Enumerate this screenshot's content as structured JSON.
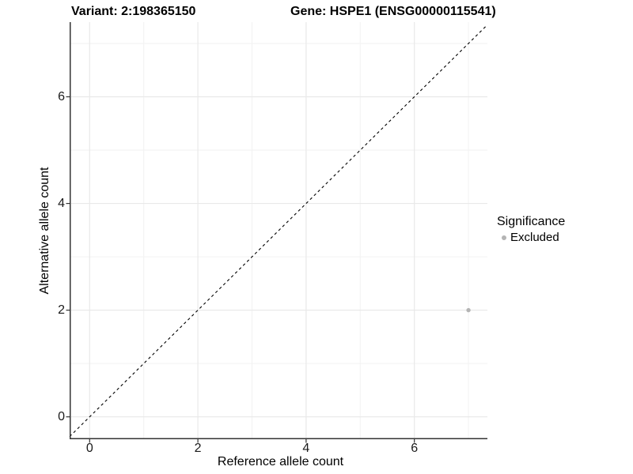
{
  "titles": {
    "variant": "Variant: 2:198365150",
    "gene": "Gene: HSPE1 (ENSG00000115541)"
  },
  "chart_data": {
    "type": "scatter",
    "xlabel": "Reference allele count",
    "ylabel": "Alternative allele count",
    "xlim": [
      -0.37,
      7.35
    ],
    "ylim": [
      -0.42,
      7.4
    ],
    "x_ticks": [
      0,
      2,
      4,
      6
    ],
    "y_ticks": [
      0,
      2,
      4,
      6
    ],
    "x_minor_grid": [
      1,
      3,
      5,
      7
    ],
    "y_minor_grid": [
      1,
      3,
      5,
      7
    ],
    "grid": true,
    "points": [
      {
        "x": 7,
        "y": 2,
        "significance": "Excluded"
      }
    ],
    "identity_line": {
      "style": "dashed",
      "equation": "y = x"
    },
    "legend": {
      "title": "Significance",
      "position": "right",
      "items": [
        {
          "label": "Excluded",
          "color": "#b4b4b4"
        }
      ]
    }
  },
  "colors": {
    "background": "#ffffff",
    "point": "#b4b4b4",
    "grid_major": "#e9e9e9",
    "grid_minor": "#f2f2f2",
    "axis_line": "#333333",
    "dashed_line": "#000000",
    "tick_text": "#1a1a1a"
  }
}
